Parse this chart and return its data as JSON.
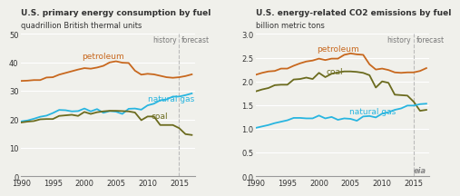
{
  "left_title1": "U.S. primary energy consumption by fuel",
  "left_title2": "quadrillion British thermal units",
  "right_title1": "U.S. energy-related CO2 emissions by fuel",
  "right_title2": "billion metric tons",
  "history_label": "history",
  "forecast_label": "forecast",
  "forecast_year": 2015,
  "years": [
    1990,
    1991,
    1992,
    1993,
    1994,
    1995,
    1996,
    1997,
    1998,
    1999,
    2000,
    2001,
    2002,
    2003,
    2004,
    2005,
    2006,
    2007,
    2008,
    2009,
    2010,
    2011,
    2012,
    2013,
    2014,
    2015,
    2016,
    2017
  ],
  "left_petroleum": [
    33.5,
    33.6,
    33.8,
    33.8,
    34.7,
    34.8,
    35.7,
    36.3,
    36.9,
    37.5,
    38.0,
    37.8,
    38.2,
    38.8,
    40.0,
    40.4,
    39.9,
    39.8,
    37.1,
    35.7,
    36.0,
    35.8,
    35.3,
    34.8,
    34.6,
    34.8,
    35.2,
    35.8
  ],
  "left_natural_gas": [
    19.3,
    19.6,
    20.2,
    20.9,
    21.3,
    22.2,
    23.3,
    23.2,
    22.8,
    22.9,
    23.8,
    22.8,
    23.6,
    22.3,
    22.9,
    22.7,
    21.9,
    23.7,
    23.8,
    23.4,
    24.9,
    25.5,
    26.7,
    27.0,
    28.0,
    28.0,
    28.5,
    29.1
  ],
  "left_coal": [
    18.9,
    19.2,
    19.4,
    20.0,
    20.1,
    20.1,
    21.2,
    21.4,
    21.6,
    21.2,
    22.6,
    21.9,
    22.5,
    22.8,
    23.0,
    23.0,
    22.9,
    22.8,
    22.4,
    19.7,
    21.0,
    21.0,
    18.0,
    18.0,
    18.0,
    16.9,
    14.8,
    14.5
  ],
  "right_petroleum": [
    2.14,
    2.18,
    2.21,
    2.22,
    2.27,
    2.27,
    2.33,
    2.38,
    2.42,
    2.44,
    2.48,
    2.45,
    2.48,
    2.48,
    2.56,
    2.59,
    2.57,
    2.56,
    2.36,
    2.25,
    2.27,
    2.24,
    2.19,
    2.18,
    2.19,
    2.19,
    2.22,
    2.28
  ],
  "right_coal": [
    1.79,
    1.83,
    1.86,
    1.92,
    1.93,
    1.93,
    2.04,
    2.05,
    2.08,
    2.05,
    2.18,
    2.09,
    2.16,
    2.19,
    2.21,
    2.21,
    2.2,
    2.18,
    2.13,
    1.87,
    2.0,
    1.97,
    1.72,
    1.71,
    1.7,
    1.57,
    1.38,
    1.4
  ],
  "right_natural_gas": [
    1.02,
    1.05,
    1.08,
    1.12,
    1.15,
    1.18,
    1.23,
    1.23,
    1.22,
    1.22,
    1.28,
    1.22,
    1.25,
    1.19,
    1.22,
    1.21,
    1.17,
    1.26,
    1.27,
    1.24,
    1.32,
    1.35,
    1.4,
    1.43,
    1.49,
    1.49,
    1.52,
    1.53
  ],
  "petroleum_color": "#c8681e",
  "natural_gas_color": "#28b5e0",
  "coal_color": "#6b6b1e",
  "dashed_line_color": "#bbbbbb",
  "left_ylim": [
    0,
    50
  ],
  "left_yticks": [
    0,
    10,
    20,
    30,
    40,
    50
  ],
  "right_ylim": [
    0.0,
    3.0
  ],
  "right_yticks": [
    0.0,
    0.5,
    1.0,
    1.5,
    2.0,
    2.5,
    3.0
  ],
  "xticks": [
    1990,
    1995,
    2000,
    2005,
    2010,
    2015
  ],
  "bg_color": "#f0f0eb",
  "grid_color": "#ffffff",
  "text_color": "#333333",
  "label_color": "#777777"
}
